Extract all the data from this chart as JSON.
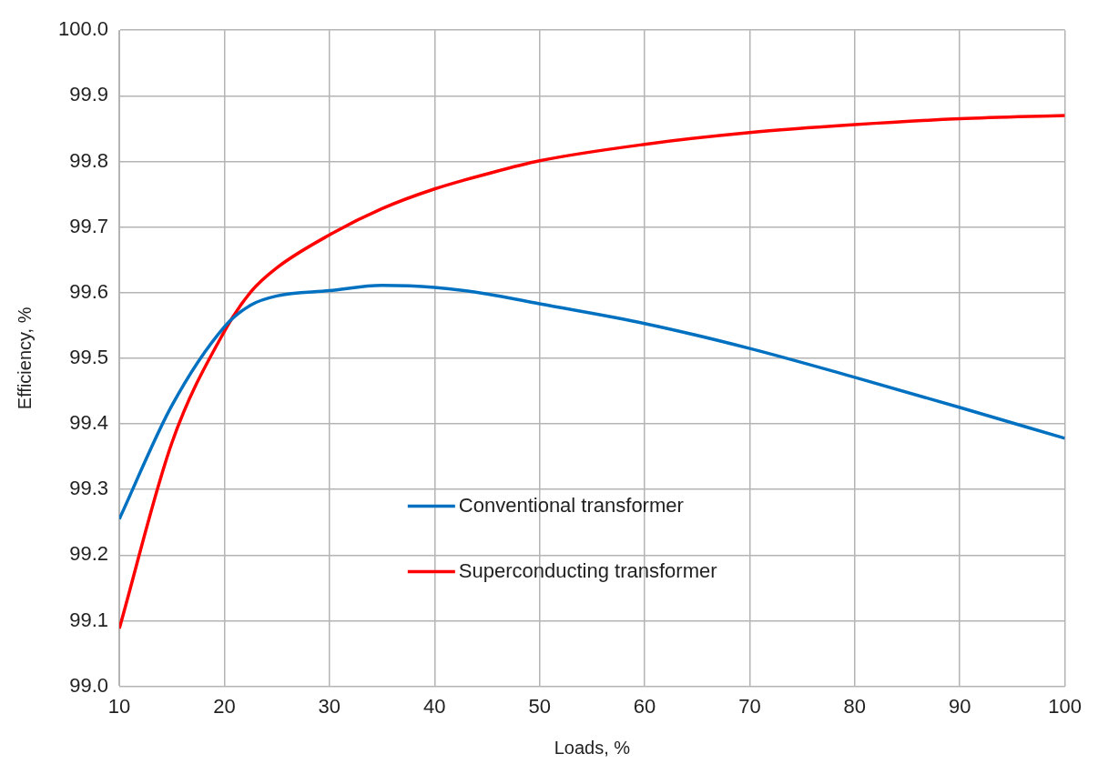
{
  "chart_data": {
    "type": "line",
    "xlabel": "Loads, %",
    "ylabel": "Efficiency, %",
    "x": [
      10,
      15,
      20,
      22.5,
      25,
      30,
      35,
      40,
      45,
      50,
      60,
      70,
      80,
      90,
      100
    ],
    "series": [
      {
        "name": "Conventional transformer",
        "color": "#0070c0",
        "values": [
          99.255,
          99.428,
          99.548,
          99.581,
          99.595,
          99.603,
          99.611,
          99.608,
          99.598,
          99.583,
          99.553,
          99.515,
          99.471,
          99.425,
          99.378
        ]
      },
      {
        "name": "Superconducting transformer",
        "color": "#ff0000",
        "values": [
          99.088,
          99.371,
          99.541,
          99.601,
          99.638,
          99.688,
          99.728,
          99.758,
          99.781,
          99.801,
          99.826,
          99.844,
          99.856,
          99.865,
          99.87
        ]
      }
    ],
    "xlim": [
      10,
      100
    ],
    "xticks": [
      10,
      20,
      30,
      40,
      50,
      60,
      70,
      80,
      90,
      100
    ],
    "ylim": [
      99.0,
      100.0
    ],
    "yticks": [
      {
        "value": 99.0,
        "label": "99.0"
      },
      {
        "value": 99.1,
        "label": "99.1"
      },
      {
        "value": 99.2,
        "label": "99.2"
      },
      {
        "value": 99.3,
        "label": "99.3"
      },
      {
        "value": 99.4,
        "label": "99.4"
      },
      {
        "value": 99.5,
        "label": "99.5"
      },
      {
        "value": 99.6,
        "label": "99.6"
      },
      {
        "value": 99.7,
        "label": "99.7"
      },
      {
        "value": 99.8,
        "label": "99.8"
      },
      {
        "value": 99.9,
        "label": "99.9"
      },
      {
        "value": 100.0,
        "label": "100.0"
      }
    ],
    "grid": true,
    "legend": "bottom",
    "marker": "none",
    "line_style": "solid"
  }
}
